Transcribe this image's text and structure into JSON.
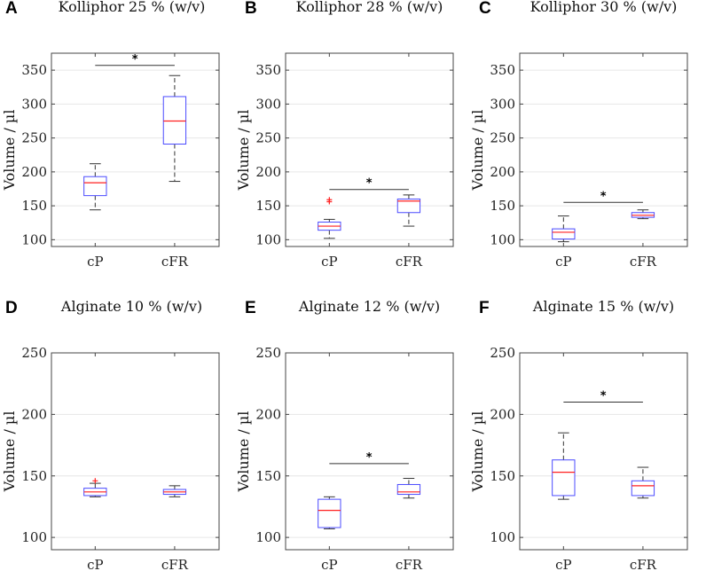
{
  "colors": {
    "box": "#4b4bff",
    "median": "#ff2020",
    "whisker": "#333333",
    "outlier": "#ff2020",
    "grid": "#e6e6e6",
    "axis": "#444444"
  },
  "chart_data": [
    {
      "type": "boxplot",
      "panel": "A",
      "title": "Kolliphor 25 % (w/v)",
      "ylabel": "Volume / µl",
      "categories": [
        "cP",
        "cFR"
      ],
      "ylim": [
        90,
        375
      ],
      "yticks": [
        100,
        150,
        200,
        250,
        300,
        350
      ],
      "ytick_labels": [
        "100",
        "150",
        "200",
        "250",
        "300",
        "350"
      ],
      "boxes": [
        {
          "min": 144,
          "q1": 165,
          "median": 184,
          "q3": 193,
          "max": 212,
          "outliers": []
        },
        {
          "min": 186,
          "q1": 241,
          "median": 275,
          "q3": 311,
          "max": 342,
          "outliers": []
        }
      ],
      "significance": {
        "label": "*",
        "y": 357
      }
    },
    {
      "type": "boxplot",
      "panel": "B",
      "title": "Kolliphor 28 % (w/v)",
      "ylabel": "Volume / µl",
      "categories": [
        "cP",
        "cFR"
      ],
      "ylim": [
        90,
        375
      ],
      "yticks": [
        100,
        150,
        200,
        250,
        300,
        350
      ],
      "ytick_labels": [
        "100",
        "150",
        "200",
        "250",
        "300",
        "350"
      ],
      "boxes": [
        {
          "min": 102,
          "q1": 114,
          "median": 120,
          "q3": 126,
          "max": 130,
          "outliers": [
            156,
            159
          ]
        },
        {
          "min": 120,
          "q1": 140,
          "median": 157,
          "q3": 160,
          "max": 166,
          "outliers": []
        }
      ],
      "significance": {
        "label": "*",
        "y": 174
      }
    },
    {
      "type": "boxplot",
      "panel": "C",
      "title": "Kolliphor 30 % (w/v)",
      "ylabel": "Volume / µl",
      "categories": [
        "cP",
        "cFR"
      ],
      "ylim": [
        90,
        375
      ],
      "yticks": [
        100,
        150,
        200,
        250,
        300,
        350
      ],
      "ytick_labels": [
        "100",
        "150",
        "200",
        "250",
        "300",
        "350"
      ],
      "boxes": [
        {
          "min": 97,
          "q1": 101,
          "median": 111,
          "q3": 116,
          "max": 135,
          "outliers": []
        },
        {
          "min": 131,
          "q1": 133,
          "median": 136,
          "q3": 140,
          "max": 144,
          "outliers": []
        }
      ],
      "significance": {
        "label": "*",
        "y": 155
      }
    },
    {
      "type": "boxplot",
      "panel": "D",
      "title": "Alginate 10 % (w/v)",
      "ylabel": "Volume / µl",
      "categories": [
        "cP",
        "cFR"
      ],
      "ylim": [
        90,
        250
      ],
      "yticks": [
        100,
        150,
        200,
        250
      ],
      "ytick_labels": [
        "100",
        "150",
        "200",
        "250"
      ],
      "boxes": [
        {
          "min": 133,
          "q1": 134,
          "median": 137,
          "q3": 140,
          "max": 144,
          "outliers": [
            146
          ]
        },
        {
          "min": 133,
          "q1": 135,
          "median": 137,
          "q3": 139,
          "max": 142,
          "outliers": []
        }
      ],
      "significance": null
    },
    {
      "type": "boxplot",
      "panel": "E",
      "title": "Alginate 12 % (w/v)",
      "ylabel": "Volume / µl",
      "categories": [
        "cP",
        "cFR"
      ],
      "ylim": [
        90,
        250
      ],
      "yticks": [
        100,
        150,
        200,
        250
      ],
      "ytick_labels": [
        "100",
        "150",
        "200",
        "250"
      ],
      "boxes": [
        {
          "min": 107,
          "q1": 108,
          "median": 122,
          "q3": 131,
          "max": 133,
          "outliers": []
        },
        {
          "min": 132,
          "q1": 135,
          "median": 137,
          "q3": 143,
          "max": 148,
          "outliers": []
        }
      ],
      "significance": {
        "label": "*",
        "y": 160
      }
    },
    {
      "type": "boxplot",
      "panel": "F",
      "title": "Alginate 15 % (w/v)",
      "ylabel": "Volume / µl",
      "categories": [
        "cP",
        "cFR"
      ],
      "ylim": [
        90,
        250
      ],
      "yticks": [
        100,
        150,
        200,
        250
      ],
      "ytick_labels": [
        "100",
        "150",
        "200",
        "250"
      ],
      "boxes": [
        {
          "min": 131,
          "q1": 134,
          "median": 153,
          "q3": 163,
          "max": 185,
          "outliers": []
        },
        {
          "min": 132,
          "q1": 134,
          "median": 142,
          "q3": 146,
          "max": 157,
          "outliers": []
        }
      ],
      "significance": {
        "label": "*",
        "y": 210
      }
    }
  ]
}
